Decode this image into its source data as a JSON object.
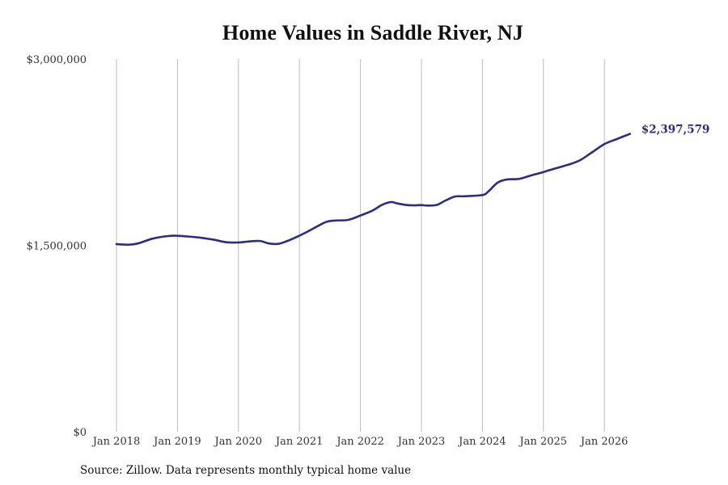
{
  "chart_data": {
    "type": "line",
    "title": "Home Values in Saddle River, NJ",
    "xlabel": "",
    "ylabel": "",
    "ylim": [
      0,
      3000000
    ],
    "y_ticks": [
      {
        "value": 0,
        "label": "$0"
      },
      {
        "value": 1500000,
        "label": "$1,500,000"
      },
      {
        "value": 3000000,
        "label": "$3,000,000"
      }
    ],
    "x_ticks": [
      {
        "value": 2018.0,
        "label": "Jan 2018"
      },
      {
        "value": 2019.0,
        "label": "Jan 2019"
      },
      {
        "value": 2020.0,
        "label": "Jan 2020"
      },
      {
        "value": 2021.0,
        "label": "Jan 2021"
      },
      {
        "value": 2022.0,
        "label": "Jan 2022"
      },
      {
        "value": 2023.0,
        "label": "Jan 2023"
      },
      {
        "value": 2024.0,
        "label": "Jan 2024"
      },
      {
        "value": 2025.0,
        "label": "Jan 2025"
      },
      {
        "value": 2026.0,
        "label": "Jan 2026"
      }
    ],
    "grid": {
      "vertical": true,
      "horizontal": false
    },
    "line_color": "#2e2c82",
    "series": [
      {
        "x": [
          2018.0,
          2018.2,
          2018.35,
          2018.6,
          2018.85,
          2019.0,
          2019.2,
          2019.4,
          2019.6,
          2019.8,
          2020.0,
          2020.15,
          2020.35,
          2020.5,
          2020.65,
          2020.8,
          2021.0,
          2021.15,
          2021.3,
          2021.45,
          2021.6,
          2021.8,
          2022.0,
          2022.2,
          2022.35,
          2022.5,
          2022.6,
          2022.75,
          2022.9,
          2023.0,
          2023.1,
          2023.25,
          2023.4,
          2023.55,
          2023.7,
          2024.0,
          2024.1,
          2024.25,
          2024.4,
          2024.6,
          2024.8,
          2025.0,
          2025.2,
          2025.4,
          2025.6,
          2025.8,
          2026.0,
          2026.2,
          2026.42
        ],
        "values": [
          1510000,
          1505000,
          1515000,
          1555000,
          1575000,
          1577000,
          1570000,
          1560000,
          1545000,
          1525000,
          1523000,
          1530000,
          1535000,
          1515000,
          1512000,
          1535000,
          1578000,
          1615000,
          1655000,
          1690000,
          1700000,
          1705000,
          1740000,
          1780000,
          1825000,
          1848000,
          1838000,
          1825000,
          1822000,
          1824000,
          1820000,
          1825000,
          1862000,
          1893000,
          1895000,
          1905000,
          1935000,
          2005000,
          2030000,
          2035000,
          2063000,
          2090000,
          2120000,
          2148000,
          2185000,
          2250000,
          2315000,
          2355000,
          2397579
        ]
      }
    ],
    "end_label": "$2,397,579"
  },
  "footer": {
    "source": "Source: Zillow. Data represents monthly typical home value"
  }
}
